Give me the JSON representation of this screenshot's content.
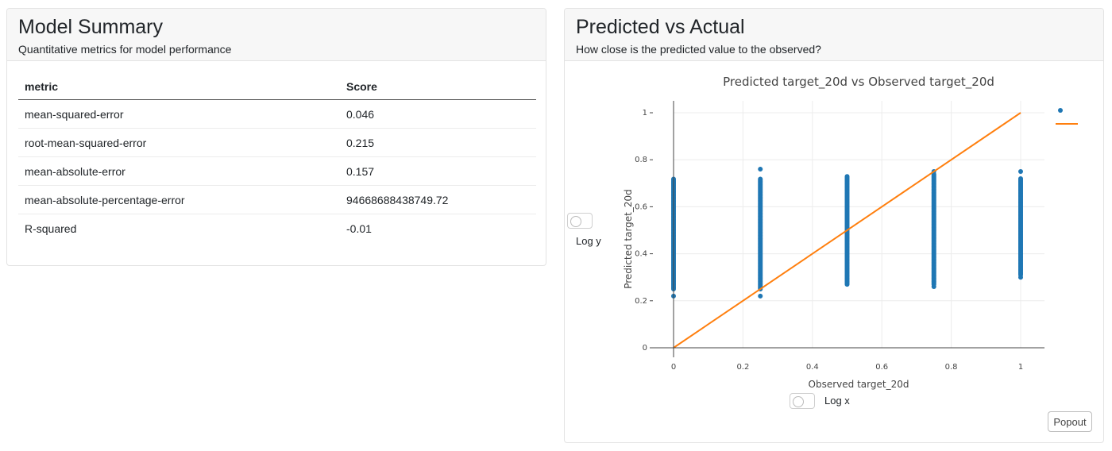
{
  "summary": {
    "title": "Model Summary",
    "subtitle": "Quantitative metrics for model performance",
    "columns": [
      "metric",
      "Score"
    ],
    "rows": [
      {
        "metric": "mean-squared-error",
        "score": "0.046"
      },
      {
        "metric": "root-mean-squared-error",
        "score": "0.215"
      },
      {
        "metric": "mean-absolute-error",
        "score": "0.157"
      },
      {
        "metric": "mean-absolute-percentage-error",
        "score": "94668688438749.72"
      },
      {
        "metric": "R-squared",
        "score": "-0.01"
      }
    ]
  },
  "predicted": {
    "title": "Predicted vs Actual",
    "subtitle": "How close is the predicted value to the observed?",
    "log_y_label": "Log y",
    "log_x_label": "Log x",
    "log_y_on": false,
    "log_x_on": false,
    "popout_label": "Popout"
  },
  "chart_data": {
    "type": "scatter",
    "title": "Predicted target_20d vs Observed target_20d",
    "xlabel": "Observed target_20d",
    "ylabel": "Predicted target_20d",
    "xlim": [
      0,
      1
    ],
    "ylim": [
      0,
      1
    ],
    "x_ticks": [
      "0",
      "0.2",
      "0.4",
      "0.6",
      "0.8",
      "1"
    ],
    "y_ticks": [
      "0",
      "0.2",
      "0.4",
      "0.6",
      "0.8",
      "1"
    ],
    "grid": true,
    "legend": "right",
    "colors": {
      "points": "#1f77b4",
      "reference_line": "#ff7f0e"
    },
    "series": [
      {
        "type": "scatter",
        "columns": [
          {
            "x": 0,
            "y_min": 0.25,
            "y_max": 0.72,
            "outliers": [
              0.22,
              0.7
            ]
          },
          {
            "x": 0.25,
            "y_min": 0.25,
            "y_max": 0.72,
            "outliers": [
              0.22,
              0.76
            ]
          },
          {
            "x": 0.5,
            "y_min": 0.27,
            "y_max": 0.73,
            "outliers": []
          },
          {
            "x": 0.75,
            "y_min": 0.27,
            "y_max": 0.74,
            "outliers": [
              0.26,
              0.75
            ]
          },
          {
            "x": 1,
            "y_min": 0.31,
            "y_max": 0.72,
            "outliers": [
              0.3,
              0.75
            ]
          }
        ]
      },
      {
        "type": "line",
        "x": [
          0,
          1
        ],
        "y": [
          0,
          1
        ]
      }
    ]
  }
}
